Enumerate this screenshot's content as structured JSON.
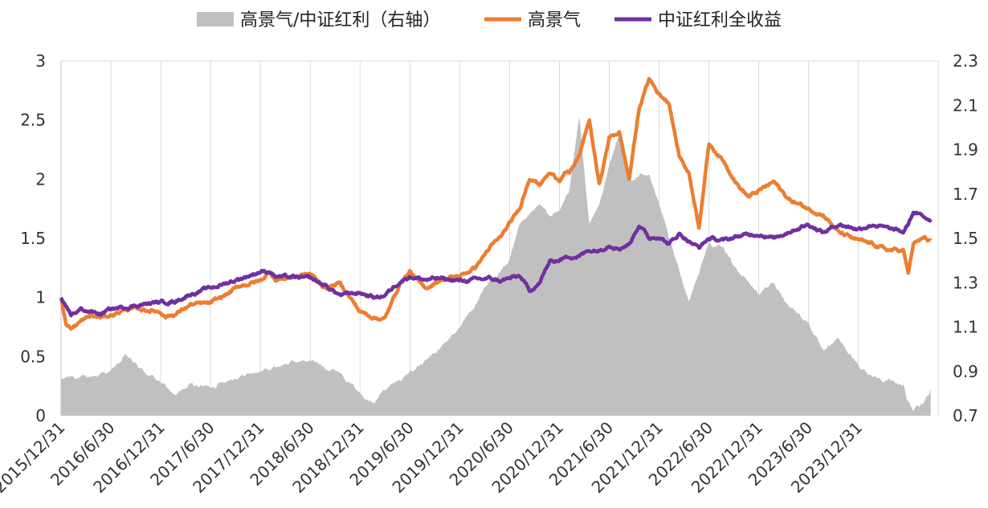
{
  "chart_data": {
    "type": "line",
    "title": "",
    "xlabel": "",
    "ylabel": "",
    "grid": "vertical",
    "legend_position": "top",
    "x_tick_labels": [
      "2015/12/31",
      "2016/6/30",
      "2016/12/31",
      "2017/6/30",
      "2017/12/31",
      "2018/6/30",
      "2018/12/31",
      "2019/6/30",
      "2019/12/31",
      "2020/6/30",
      "2020/12/31",
      "2021/6/30",
      "2021/12/31",
      "2022/6/30",
      "2022/12/31",
      "2023/6/30",
      "2023/12/31"
    ],
    "xlim": [
      0,
      17.6
    ],
    "left_axis": {
      "ylim": [
        0,
        3
      ],
      "ticks": [
        "0",
        "0.5",
        "1",
        "1.5",
        "2",
        "2.5",
        "3"
      ]
    },
    "right_axis": {
      "ylim": [
        0.7,
        2.3
      ],
      "ticks": [
        "0.7",
        "0.9",
        "1.1",
        "1.3",
        "1.5",
        "1.7",
        "1.9",
        "2.1",
        "2.3"
      ]
    },
    "series": [
      {
        "name": "高景气/中证红利（右轴）",
        "type": "area",
        "axis": "right",
        "color": "#c0c0c0",
        "x": [
          0,
          0.2,
          0.5,
          1,
          1.3,
          1.6,
          2,
          2.3,
          2.6,
          3,
          3.3,
          3.6,
          4,
          4.3,
          4.6,
          5,
          5.3,
          5.6,
          6,
          6.3,
          6.5,
          6.8,
          7,
          7.3,
          7.6,
          8,
          8.3,
          8.6,
          9,
          9.2,
          9.4,
          9.6,
          9.8,
          10,
          10.2,
          10.4,
          10.6,
          10.8,
          11,
          11.2,
          11.4,
          11.6,
          11.8,
          12,
          12.3,
          12.6,
          13,
          13.3,
          13.6,
          14,
          14.3,
          14.6,
          15,
          15.3,
          15.6,
          16,
          16.3,
          16.6,
          16.9,
          17,
          17.1,
          17.3,
          17.45
        ],
        "values": [
          0.86,
          0.88,
          0.87,
          0.9,
          0.97,
          0.91,
          0.85,
          0.79,
          0.84,
          0.83,
          0.86,
          0.88,
          0.9,
          0.92,
          0.94,
          0.95,
          0.92,
          0.9,
          0.8,
          0.77,
          0.82,
          0.86,
          0.9,
          0.94,
          1.0,
          1.1,
          1.2,
          1.3,
          1.4,
          1.55,
          1.6,
          1.65,
          1.6,
          1.62,
          1.72,
          2.05,
          1.56,
          1.65,
          1.82,
          1.97,
          1.75,
          1.78,
          1.8,
          1.65,
          1.42,
          1.22,
          1.48,
          1.45,
          1.35,
          1.25,
          1.3,
          1.2,
          1.12,
          0.98,
          1.05,
          0.92,
          0.88,
          0.86,
          0.84,
          0.76,
          0.72,
          0.75,
          0.82
        ]
      },
      {
        "name": "高景气",
        "type": "line",
        "axis": "left",
        "color": "#ed7d31",
        "x": [
          0,
          0.1,
          0.2,
          0.4,
          0.6,
          0.8,
          1,
          1.3,
          1.6,
          2,
          2.1,
          2.3,
          2.6,
          3,
          3.3,
          3.6,
          4,
          4.2,
          4.3,
          4.6,
          5,
          5.3,
          5.6,
          6,
          6.3,
          6.5,
          6.8,
          7,
          7.3,
          7.6,
          8,
          8.3,
          8.6,
          8.8,
          9,
          9.2,
          9.4,
          9.6,
          9.8,
          10,
          10.1,
          10.2,
          10.4,
          10.6,
          10.8,
          11,
          11.2,
          11.4,
          11.6,
          11.8,
          12,
          12.2,
          12.4,
          12.6,
          12.8,
          13,
          13.3,
          13.6,
          13.8,
          14,
          14.3,
          14.6,
          15,
          15.3,
          15.6,
          16,
          16.3,
          16.6,
          16.9,
          17,
          17.1,
          17.3,
          17.45
        ],
        "values": [
          1.0,
          0.78,
          0.74,
          0.8,
          0.84,
          0.83,
          0.85,
          0.9,
          0.9,
          0.88,
          0.84,
          0.86,
          0.94,
          0.95,
          1.02,
          1.1,
          1.14,
          1.22,
          1.15,
          1.17,
          1.2,
          1.08,
          1.12,
          0.88,
          0.83,
          0.82,
          1.12,
          1.22,
          1.07,
          1.15,
          1.18,
          1.25,
          1.42,
          1.5,
          1.62,
          1.75,
          2.02,
          1.96,
          2.05,
          2.0,
          2.05,
          2.05,
          2.2,
          2.5,
          1.95,
          2.35,
          2.4,
          2.0,
          2.6,
          2.85,
          2.72,
          2.65,
          2.2,
          2.05,
          1.6,
          2.3,
          2.15,
          1.94,
          1.85,
          1.9,
          1.98,
          1.83,
          1.75,
          1.7,
          1.55,
          1.48,
          1.45,
          1.4,
          1.4,
          1.2,
          1.45,
          1.5,
          1.48
        ]
      },
      {
        "name": "中证红利全收益",
        "type": "line",
        "axis": "left",
        "color": "#7030a0",
        "x": [
          0,
          0.1,
          0.2,
          0.4,
          0.6,
          0.8,
          1,
          1.3,
          1.6,
          2,
          2.3,
          2.6,
          3,
          3.3,
          3.6,
          4,
          4.2,
          4.3,
          4.6,
          5,
          5.3,
          5.6,
          6,
          6.3,
          6.5,
          6.8,
          7,
          7.3,
          7.6,
          8,
          8.3,
          8.6,
          8.8,
          9,
          9.2,
          9.4,
          9.6,
          9.8,
          10,
          10.2,
          10.4,
          10.6,
          10.8,
          11,
          11.2,
          11.4,
          11.6,
          11.8,
          12,
          12.2,
          12.4,
          12.6,
          12.8,
          13,
          13.3,
          13.6,
          14,
          14.3,
          14.6,
          15,
          15.3,
          15.6,
          16,
          16.3,
          16.6,
          16.9,
          17,
          17.1,
          17.3,
          17.45
        ],
        "values": [
          1.0,
          0.9,
          0.85,
          0.9,
          0.88,
          0.86,
          0.9,
          0.92,
          0.94,
          0.96,
          0.97,
          1.03,
          1.08,
          1.12,
          1.16,
          1.22,
          1.22,
          1.18,
          1.17,
          1.16,
          1.1,
          1.02,
          1.04,
          1.0,
          1.02,
          1.14,
          1.18,
          1.15,
          1.16,
          1.14,
          1.15,
          1.16,
          1.14,
          1.16,
          1.18,
          1.06,
          1.12,
          1.3,
          1.32,
          1.35,
          1.35,
          1.4,
          1.4,
          1.45,
          1.42,
          1.45,
          1.62,
          1.5,
          1.52,
          1.45,
          1.54,
          1.48,
          1.42,
          1.5,
          1.48,
          1.52,
          1.54,
          1.5,
          1.56,
          1.62,
          1.55,
          1.62,
          1.58,
          1.62,
          1.58,
          1.55,
          1.62,
          1.72,
          1.68,
          1.66
        ]
      }
    ]
  }
}
